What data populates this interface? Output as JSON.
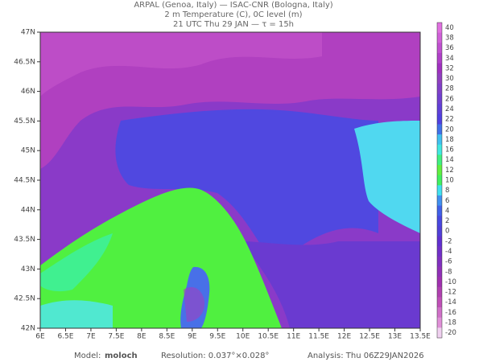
{
  "header": {
    "lines": [
      "ARPAL (Genoa, Italy)  —  ISAC-CNR (Bologna, Italy)",
      "2 m Temperature (C), 0C level (m)",
      "21 UTC Thu 29 JAN  —  τ = 15h"
    ]
  },
  "map": {
    "lon_labels": [
      "6E",
      "6.5E",
      "7E",
      "7.5E",
      "8E",
      "8.5E",
      "9E",
      "9.5E",
      "10E",
      "10.5E",
      "11E",
      "11.5E",
      "12E",
      "12.5E",
      "13E",
      "13.5E"
    ],
    "lat_labels": [
      "47N",
      "46.5N",
      "46N",
      "45.5N",
      "45N",
      "44.5N",
      "44N",
      "43.5N",
      "43N",
      "42.5N",
      "42N"
    ]
  },
  "colorbar": {
    "labels": [
      40,
      38,
      36,
      34,
      32,
      30,
      28,
      26,
      24,
      22,
      20,
      18,
      16,
      14,
      12,
      10,
      8,
      6,
      4,
      2,
      0,
      -2,
      -4,
      -6,
      -8,
      -10,
      -12,
      -14,
      -16,
      -18,
      -20
    ],
    "colors": [
      "#e070e0",
      "#d060d8",
      "#c050d0",
      "#b040c8",
      "#a030c0",
      "#9040c0",
      "#8040c8",
      "#7040d0",
      "#6040d8",
      "#5040e0",
      "#4070e8",
      "#40c0f0",
      "#40e8e0",
      "#40f080",
      "#60f040",
      "#40f060",
      "#40e0f0",
      "#4090f0",
      "#4060e8",
      "#4848e0",
      "#5040d8",
      "#6030d0",
      "#7030c8",
      "#8030c0",
      "#9030b8",
      "#a030b0",
      "#b040b0",
      "#c050b8",
      "#d070c8",
      "#e090d8",
      "#f0d0f0"
    ]
  },
  "footer": {
    "model_label": "Model:",
    "model": "moloch",
    "resolution": "Resolution: 0.037°×0.028°",
    "analysis": "Analysis: Thu 06Z29JAN2026"
  }
}
